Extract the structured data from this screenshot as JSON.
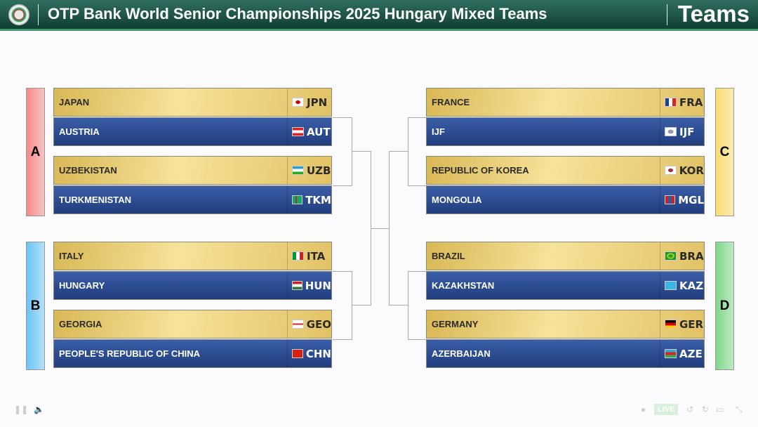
{
  "header": {
    "title": "OTP Bank World Senior Championships 2025 Hungary Mixed Teams",
    "section": "Teams"
  },
  "groups": [
    {
      "label": "A",
      "color": "#f58a88"
    },
    {
      "label": "B",
      "color": "#6cc4f4"
    },
    {
      "label": "C",
      "color": "#f9dc6e"
    },
    {
      "label": "D",
      "color": "#7fd88a"
    }
  ],
  "matches": [
    [
      {
        "name": "JAPAN",
        "code": "JPN",
        "flag": "japan-flag"
      },
      {
        "name": "AUSTRIA",
        "code": "AUT",
        "flag": "austria-flag"
      }
    ],
    [
      {
        "name": "UZBEKISTAN",
        "code": "UZB",
        "flag": "uzbekistan-flag"
      },
      {
        "name": "TURKMENISTAN",
        "code": "TKM",
        "flag": "turkmenistan-flag"
      }
    ],
    [
      {
        "name": "ITALY",
        "code": "ITA",
        "flag": "italy-flag"
      },
      {
        "name": "HUNGARY",
        "code": "HUN",
        "flag": "hungary-flag"
      }
    ],
    [
      {
        "name": "GEORGIA",
        "code": "GEO",
        "flag": "georgia-flag"
      },
      {
        "name": "PEOPLE'S REPUBLIC OF CHINA",
        "code": "CHN",
        "flag": "china-flag"
      }
    ],
    [
      {
        "name": "FRANCE",
        "code": "FRA",
        "flag": "france-flag"
      },
      {
        "name": "IJF",
        "code": "IJF",
        "flag": "ijf-flag"
      }
    ],
    [
      {
        "name": "REPUBLIC OF KOREA",
        "code": "KOR",
        "flag": "korea-flag"
      },
      {
        "name": "MONGOLIA",
        "code": "MGL",
        "flag": "mongolia-flag"
      }
    ],
    [
      {
        "name": "BRAZIL",
        "code": "BRA",
        "flag": "brazil-flag"
      },
      {
        "name": "KAZAKHSTAN",
        "code": "KAZ",
        "flag": "kazakhstan-flag"
      }
    ],
    [
      {
        "name": "GERMANY",
        "code": "GER",
        "flag": "germany-flag"
      },
      {
        "name": "AZERBAIJAN",
        "code": "AZE",
        "flag": "azerbaijan-flag"
      }
    ]
  ],
  "player": {
    "live_label": "LIVE"
  }
}
